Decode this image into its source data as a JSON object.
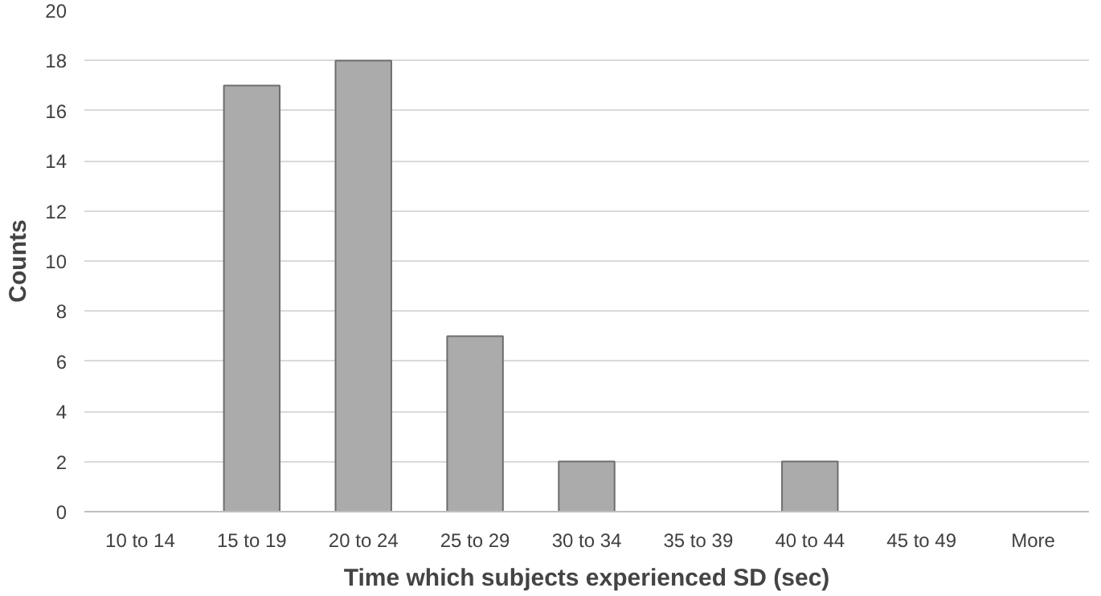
{
  "chart_data": {
    "type": "bar",
    "xlabel": "Time which subjects experienced SD (sec)",
    "ylabel": "Counts",
    "categories": [
      "10 to 14",
      "15 to 19",
      "20 to 24",
      "25 to 29",
      "30 to 34",
      "35 to 39",
      "40 to 44",
      "45 to 49",
      "More"
    ],
    "values": [
      0,
      17,
      18,
      7,
      2,
      0,
      2,
      0,
      0
    ],
    "color": "#ababab",
    "ylim": [
      0,
      20
    ],
    "yticks": [
      0,
      2,
      4,
      6,
      8,
      10,
      12,
      14,
      16,
      18,
      20
    ],
    "grid": "y"
  }
}
